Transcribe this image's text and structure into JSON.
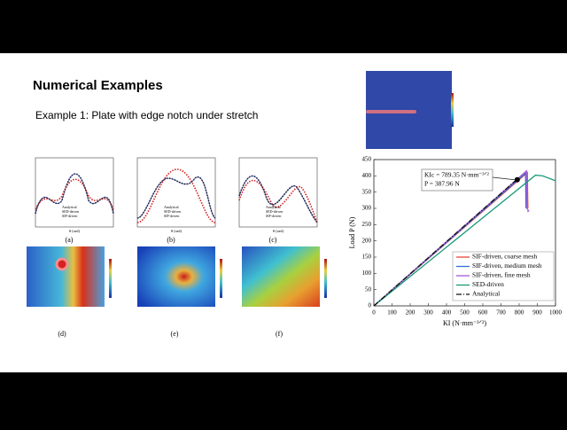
{
  "slide": {
    "title": "Numerical Examples",
    "subtitle": "Example 1: Plate with edge notch under stretch"
  },
  "small_plots": [
    {
      "caption": "(a)",
      "xlabel": "θ (rad)",
      "legend": [
        "Analytical",
        "SED-driven",
        "SIF-driven"
      ]
    },
    {
      "caption": "(b)",
      "xlabel": "θ (rad)",
      "legend": [
        "Analytical",
        "SED-driven",
        "SIF-driven"
      ]
    },
    {
      "caption": "(c)",
      "xlabel": "θ (rad)",
      "legend": [
        "Analytical",
        "SED-driven",
        "SIF-driven"
      ]
    }
  ],
  "maps": [
    {
      "caption": "(d)"
    },
    {
      "caption": "(e)"
    },
    {
      "caption": "(f)"
    }
  ],
  "load_chart": {
    "type": "line",
    "xlabel": "KI (N·mm⁻³ᐟ²)",
    "ylabel": "Load P (N)",
    "xlim": [
      0,
      1000
    ],
    "ylim": [
      0,
      450
    ],
    "xticks": [
      0,
      100,
      200,
      300,
      400,
      500,
      600,
      700,
      800,
      900,
      1000
    ],
    "yticks": [
      0,
      50,
      100,
      150,
      200,
      250,
      300,
      350,
      400,
      450
    ],
    "annotation": [
      "KIc = 789.35 N·mm⁻³ᐟ²",
      "P = 387.96 N"
    ],
    "critical_point": {
      "x": 789.35,
      "y": 387.96
    },
    "series": [
      {
        "name": "SIF-driven, coarse mesh",
        "color": "#e8483a",
        "dash": "",
        "x": [
          0,
          845,
          848
        ],
        "values": [
          0,
          410,
          300
        ]
      },
      {
        "name": "SIF-driven, medium mesh",
        "color": "#2f6fd6",
        "dash": "",
        "x": [
          0,
          835,
          838
        ],
        "values": [
          0,
          408,
          300
        ]
      },
      {
        "name": "SIF-driven, fine mesh",
        "color": "#a35bd6",
        "dash": "",
        "x": [
          0,
          840,
          843,
          852,
          845
        ],
        "values": [
          0,
          415,
          300,
          292,
          290
        ]
      },
      {
        "name": "SED-driven",
        "color": "#1a9a7a",
        "dash": "",
        "x": [
          0,
          890,
          930,
          1000
        ],
        "values": [
          0,
          402,
          400,
          385
        ]
      },
      {
        "name": "Analytical",
        "color": "#111111",
        "dash": "6 2 1 2",
        "x": [
          0,
          800
        ],
        "values": [
          0,
          395
        ]
      }
    ]
  }
}
